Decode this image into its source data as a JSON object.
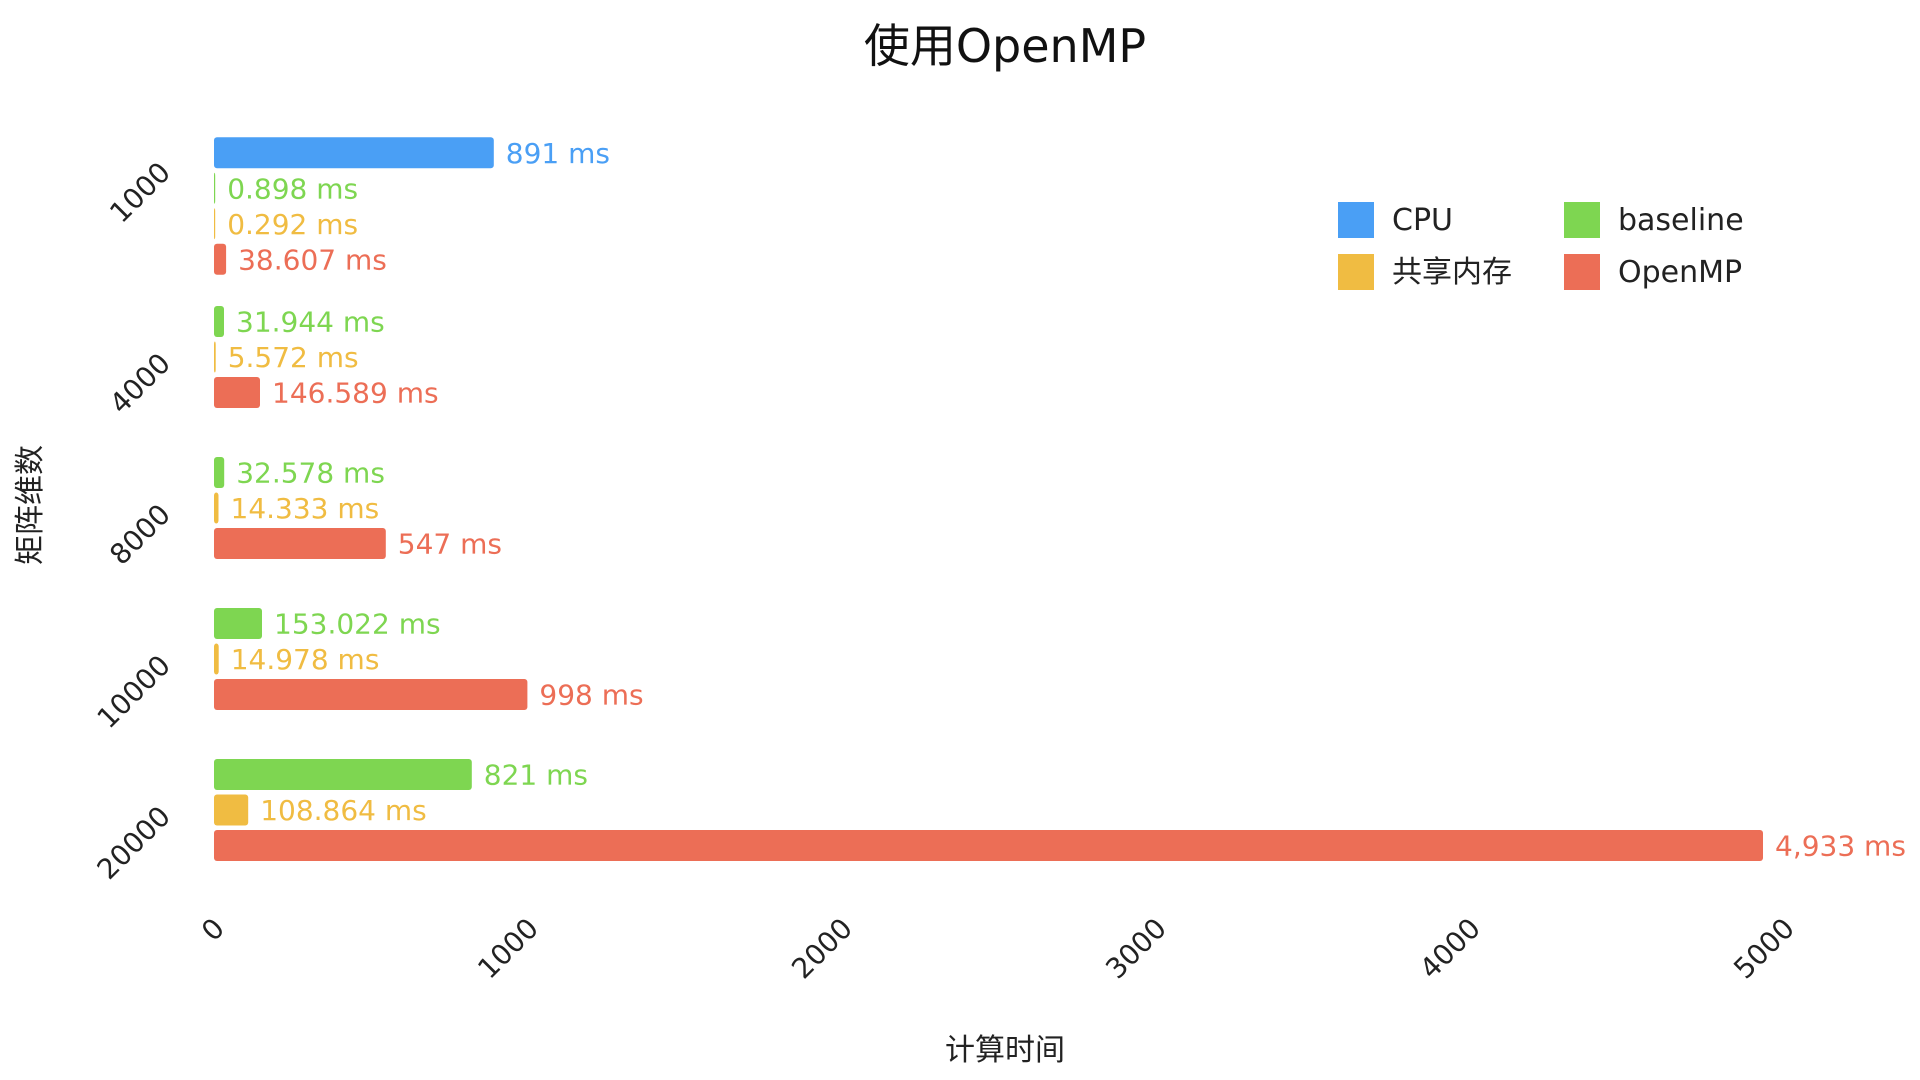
{
  "chart_data": {
    "type": "bar",
    "orientation": "horizontal",
    "title": "使用OpenMP",
    "xlabel": "计算时间",
    "ylabel": "矩阵维数",
    "xlim": [
      0,
      5000
    ],
    "xticks": [
      "0",
      "1000",
      "2000",
      "3000",
      "4000",
      "5000"
    ],
    "categories": [
      "1000",
      "4000",
      "8000",
      "10000",
      "20000"
    ],
    "grid": false,
    "legend_position": "top-right",
    "series": [
      {
        "name": "CPU",
        "color": "#4a9ff5",
        "values": [
          891,
          null,
          null,
          null,
          null
        ],
        "labels": [
          "891 ms",
          null,
          null,
          null,
          null
        ]
      },
      {
        "name": "baseline",
        "color": "#7ed651",
        "values": [
          0.898,
          31.944,
          32.578,
          153.022,
          821
        ],
        "labels": [
          "0.898 ms",
          "31.944 ms",
          "32.578 ms",
          "153.022 ms",
          "821 ms"
        ]
      },
      {
        "name": "共享内存",
        "color": "#f0bc42",
        "values": [
          0.292,
          5.572,
          14.333,
          14.978,
          108.864
        ],
        "labels": [
          "0.292 ms",
          "5.572 ms",
          "14.333 ms",
          "14.978 ms",
          "108.864 ms"
        ]
      },
      {
        "name": "OpenMP",
        "color": "#ec6e56",
        "values": [
          38.607,
          146.589,
          547,
          998,
          4933
        ],
        "labels": [
          "38.607 ms",
          "146.589 ms",
          "547 ms",
          "998 ms",
          "4,933 ms"
        ]
      }
    ],
    "legend_order": [
      0,
      1,
      2,
      3
    ]
  }
}
